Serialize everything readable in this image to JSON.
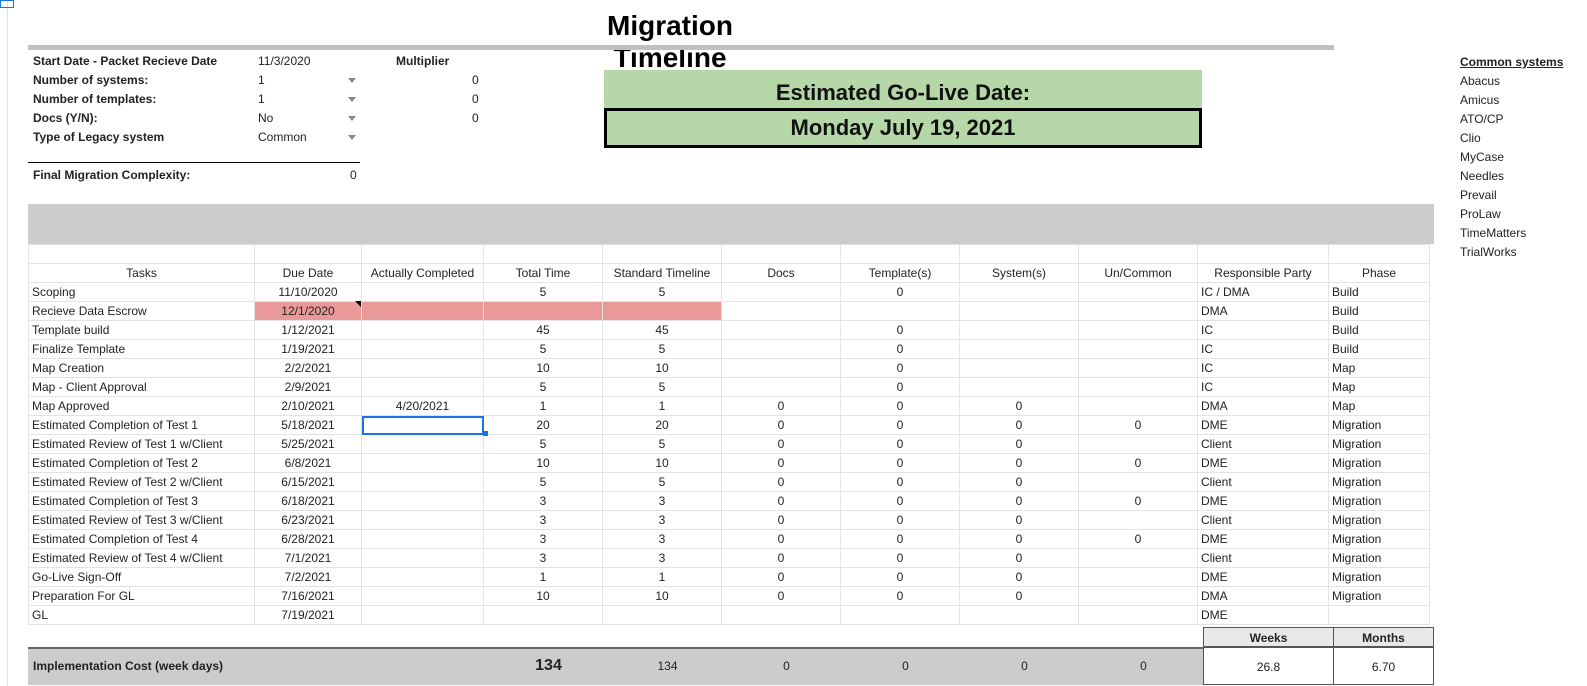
{
  "title": "Migration Timeline",
  "params": {
    "start_label": "Start Date - Packet Recieve Date",
    "start_value": "11/3/2020",
    "multiplier_label": "Multiplier",
    "systems_label": "Number of systems:",
    "systems_value": "1",
    "systems_mult": "0",
    "templates_label": "Number of templates:",
    "templates_value": "1",
    "templates_mult": "0",
    "docs_label": "Docs (Y/N):",
    "docs_value": "No",
    "docs_mult": "0",
    "legacy_label": "Type of Legacy system",
    "legacy_value": "Common",
    "complexity_label": "Final Migration Complexity:",
    "complexity_value": "0"
  },
  "golive": {
    "label": "Estimated Go-Live Date:",
    "date": "Monday July 19, 2021"
  },
  "table": {
    "headers": [
      "Tasks",
      "Due Date",
      "Actually Completed",
      "Total Time",
      "Standard Timeline",
      "Docs",
      "Template(s)",
      "System(s)",
      "Un/Common",
      "Responsible Party",
      "Phase"
    ],
    "rows": [
      [
        "Scoping",
        "11/10/2020",
        "",
        "5",
        "5",
        "",
        "0",
        "",
        "",
        "IC / DMA",
        "Build"
      ],
      [
        "Recieve Data Escrow",
        "12/1/2020",
        "",
        "",
        "",
        "",
        "",
        "",
        "",
        "DMA",
        "Build"
      ],
      [
        "Template build",
        "1/12/2021",
        "",
        "45",
        "45",
        "",
        "0",
        "",
        "",
        "IC",
        "Build"
      ],
      [
        "Finalize Template",
        "1/19/2021",
        "",
        "5",
        "5",
        "",
        "0",
        "",
        "",
        "IC",
        "Build"
      ],
      [
        "Map Creation",
        "2/2/2021",
        "",
        "10",
        "10",
        "",
        "0",
        "",
        "",
        "IC",
        "Map"
      ],
      [
        "Map - Client Approval",
        "2/9/2021",
        "",
        "5",
        "5",
        "",
        "0",
        "",
        "",
        "IC",
        "Map"
      ],
      [
        "Map Approved",
        "2/10/2021",
        "4/20/2021",
        "1",
        "1",
        "0",
        "0",
        "0",
        "",
        "DMA",
        "Map"
      ],
      [
        "Estimated Completion of Test 1",
        "5/18/2021",
        "",
        "20",
        "20",
        "0",
        "0",
        "0",
        "0",
        "DME",
        "Migration"
      ],
      [
        "Estimated Review of Test 1 w/Client",
        "5/25/2021",
        "",
        "5",
        "5",
        "0",
        "0",
        "0",
        "",
        "Client",
        "Migration"
      ],
      [
        "Estimated Completion of Test 2",
        "6/8/2021",
        "",
        "10",
        "10",
        "0",
        "0",
        "0",
        "0",
        "DME",
        "Migration"
      ],
      [
        "Estimated Review of Test 2 w/Client",
        "6/15/2021",
        "",
        "5",
        "5",
        "0",
        "0",
        "0",
        "",
        "Client",
        "Migration"
      ],
      [
        "Estimated Completion of Test 3",
        "6/18/2021",
        "",
        "3",
        "3",
        "0",
        "0",
        "0",
        "0",
        "DME",
        "Migration"
      ],
      [
        "Estimated Review of Test 3 w/Client",
        "6/23/2021",
        "",
        "3",
        "3",
        "0",
        "0",
        "0",
        "",
        "Client",
        "Migration"
      ],
      [
        "Estimated Completion of Test 4",
        "6/28/2021",
        "",
        "3",
        "3",
        "0",
        "0",
        "0",
        "0",
        "DME",
        "Migration"
      ],
      [
        "Estimated Review of Test 4 w/Client",
        "7/1/2021",
        "",
        "3",
        "3",
        "0",
        "0",
        "0",
        "",
        "Client",
        "Migration"
      ],
      [
        "Go-Live Sign-Off",
        "7/2/2021",
        "",
        "1",
        "1",
        "0",
        "0",
        "0",
        "",
        "DME",
        "Migration"
      ],
      [
        "Preparation For GL",
        "7/16/2021",
        "",
        "10",
        "10",
        "0",
        "0",
        "0",
        "",
        "DMA",
        "Migration"
      ],
      [
        "GL",
        "7/19/2021",
        "",
        "",
        "",
        "",
        "",
        "",
        "",
        "DME",
        ""
      ]
    ]
  },
  "summary": {
    "label": "Implementation Cost (week days)",
    "total_time": "134",
    "standard": "134",
    "docs": "0",
    "templates": "0",
    "systems": "0",
    "uncommon": "0",
    "weeks_label": "Weeks",
    "weeks_value": "26.8",
    "months_label": "Months",
    "months_value": "6.70"
  },
  "common_systems": {
    "title": "Common systems",
    "items": [
      "Abacus",
      "Amicus",
      "ATO/CP",
      "Clio",
      "MyCase",
      "Needles",
      "Prevail",
      "ProLaw",
      "TimeMatters",
      "TrialWorks"
    ]
  },
  "colors": {
    "golive_bg": "#b6d7a8",
    "overdue_bg": "#ea9999",
    "band_gray": "#cccccc",
    "selection": "#1a73e8"
  }
}
